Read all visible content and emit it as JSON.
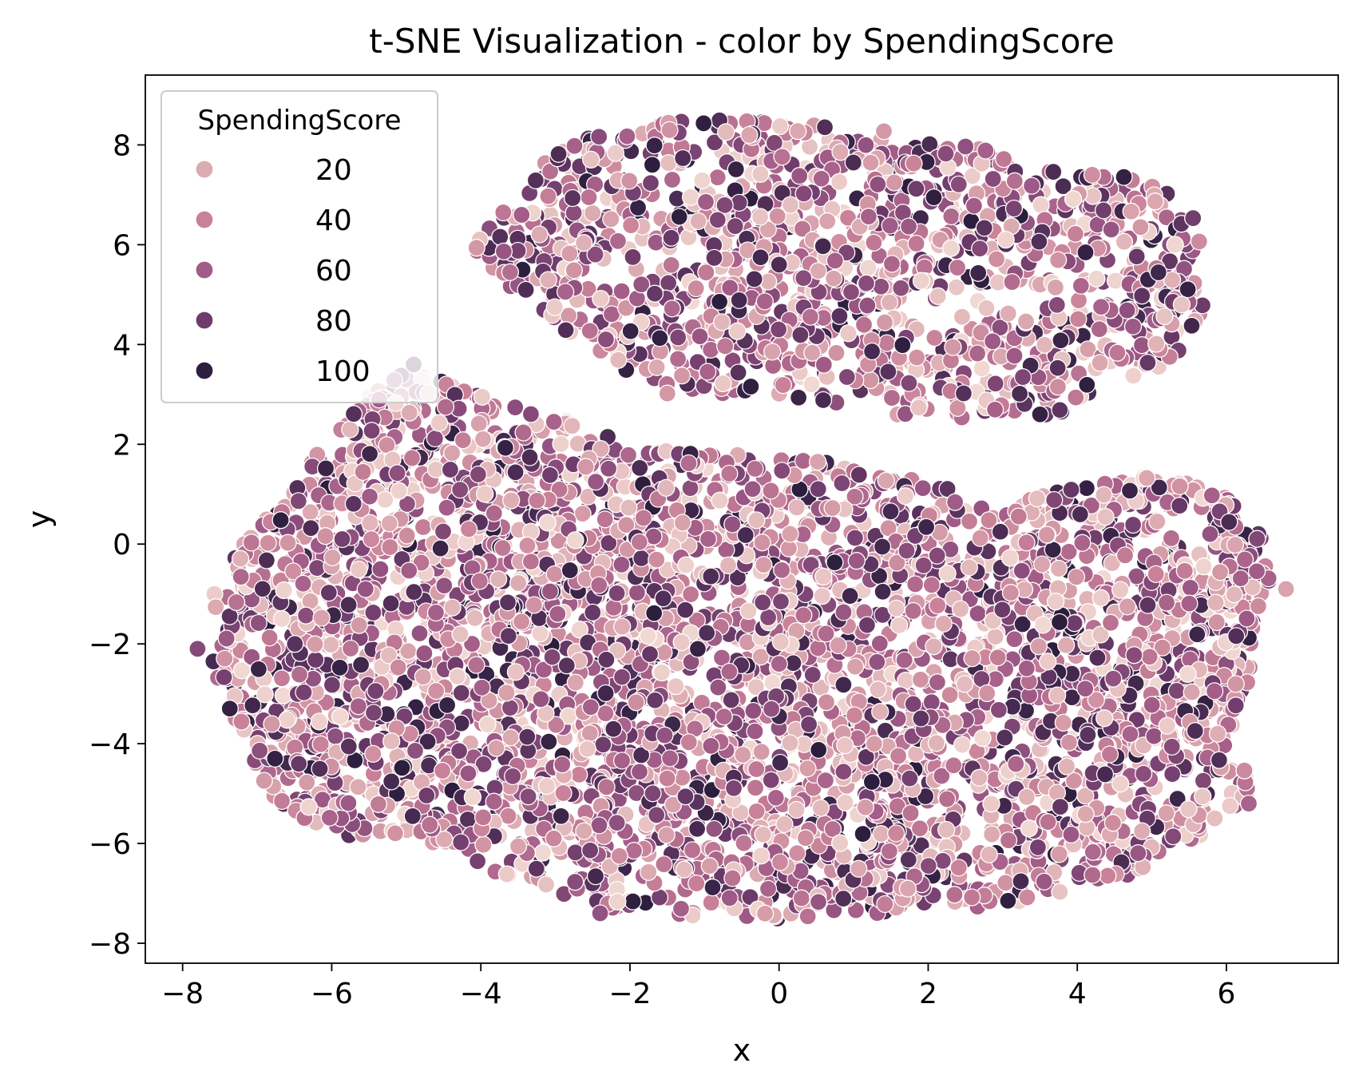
{
  "chart_data": {
    "type": "scatter",
    "title": "t-SNE Visualization - color by SpendingScore",
    "xlabel": "x",
    "ylabel": "y",
    "xlim": [
      -8.5,
      7.5
    ],
    "ylim": [
      -8.4,
      9.4
    ],
    "xticks": [
      -8,
      -6,
      -4,
      -2,
      0,
      2,
      4,
      6
    ],
    "yticks": [
      -8,
      -6,
      -4,
      -2,
      0,
      2,
      4,
      6,
      8
    ],
    "grid": false,
    "legend": {
      "title": "SpendingScore",
      "placement": "top-left",
      "entries": [
        {
          "label": "20",
          "value": 20,
          "color": "#dcaab1"
        },
        {
          "label": "40",
          "value": 40,
          "color": "#c88198"
        },
        {
          "label": "60",
          "value": 60,
          "color": "#a25c88"
        },
        {
          "label": "80",
          "value": 80,
          "color": "#6e3c6c"
        },
        {
          "label": "100",
          "value": 100,
          "color": "#2d1e3e"
        }
      ]
    },
    "color_scale": {
      "min": 1,
      "max": 100,
      "colors": [
        "#f1d8d2",
        "#dcaab1",
        "#c88198",
        "#a25c88",
        "#6e3c6c",
        "#2d1e3e"
      ]
    },
    "clusters": [
      {
        "outline": [
          [
            -4.3,
            5.6
          ],
          [
            -3.9,
            6.4
          ],
          [
            -3.3,
            7.6
          ],
          [
            -2.5,
            8.2
          ],
          [
            -1.5,
            8.5
          ],
          [
            -0.5,
            8.5
          ],
          [
            0.5,
            8.4
          ],
          [
            1.5,
            8.3
          ],
          [
            2.5,
            8.0
          ],
          [
            3.5,
            7.6
          ],
          [
            4.5,
            7.5
          ],
          [
            5.2,
            7.1
          ],
          [
            5.7,
            6.4
          ],
          [
            5.7,
            4.4
          ],
          [
            5.2,
            3.6
          ],
          [
            4.5,
            3.1
          ],
          [
            3.6,
            2.5
          ],
          [
            2.5,
            2.5
          ],
          [
            1.5,
            2.6
          ],
          [
            0.5,
            2.9
          ],
          [
            -0.5,
            3.0
          ],
          [
            -1.5,
            3.0
          ],
          [
            -2.5,
            3.7
          ],
          [
            -3.0,
            4.5
          ],
          [
            -3.5,
            5.0
          ]
        ],
        "count": 1300,
        "sample_points": [
          [
            -0.4,
            8.2
          ],
          [
            0.0,
            5.6
          ],
          [
            -1.7,
            7.6
          ],
          [
            4.2,
            7.4
          ],
          [
            5.4,
            4.8
          ],
          [
            3.5,
            2.6
          ]
        ]
      },
      {
        "outline": [
          [
            -7.7,
            -2.1
          ],
          [
            -7.6,
            -0.8
          ],
          [
            -7.1,
            0.2
          ],
          [
            -6.5,
            1.1
          ],
          [
            -6.1,
            2.1
          ],
          [
            -5.6,
            2.9
          ],
          [
            -5.1,
            3.4
          ],
          [
            -4.6,
            3.3
          ],
          [
            -3.6,
            2.8
          ],
          [
            -2.9,
            2.5
          ],
          [
            -2.2,
            2.1
          ],
          [
            -1.5,
            1.9
          ],
          [
            -0.5,
            1.8
          ],
          [
            0.5,
            1.7
          ],
          [
            1.5,
            1.4
          ],
          [
            2.3,
            1.1
          ],
          [
            3.0,
            0.8
          ],
          [
            4.0,
            1.2
          ],
          [
            5.0,
            1.4
          ],
          [
            5.8,
            1.1
          ],
          [
            6.4,
            0.6
          ],
          [
            6.6,
            -0.6
          ],
          [
            6.4,
            -1.6
          ],
          [
            6.2,
            -3.8
          ],
          [
            6.3,
            -5.2
          ],
          [
            5.8,
            -5.7
          ],
          [
            5.0,
            -6.5
          ],
          [
            4.0,
            -6.9
          ],
          [
            3.0,
            -7.3
          ],
          [
            2.0,
            -7.2
          ],
          [
            1.0,
            -7.5
          ],
          [
            0.0,
            -7.6
          ],
          [
            -1.0,
            -7.5
          ],
          [
            -2.0,
            -7.4
          ],
          [
            -3.0,
            -7.0
          ],
          [
            -4.0,
            -6.5
          ],
          [
            -5.0,
            -6.0
          ],
          [
            -6.0,
            -5.8
          ],
          [
            -6.8,
            -5.2
          ],
          [
            -7.1,
            -4.1
          ],
          [
            -7.4,
            -3.2
          ]
        ],
        "count": 4200,
        "sample_points": [
          [
            -7.8,
            -2.1
          ],
          [
            6.8,
            -0.9
          ],
          [
            6.3,
            -5.2
          ],
          [
            -4.9,
            3.6
          ],
          [
            0.0,
            -2.4
          ],
          [
            -2.4,
            -7.4
          ]
        ]
      }
    ]
  }
}
